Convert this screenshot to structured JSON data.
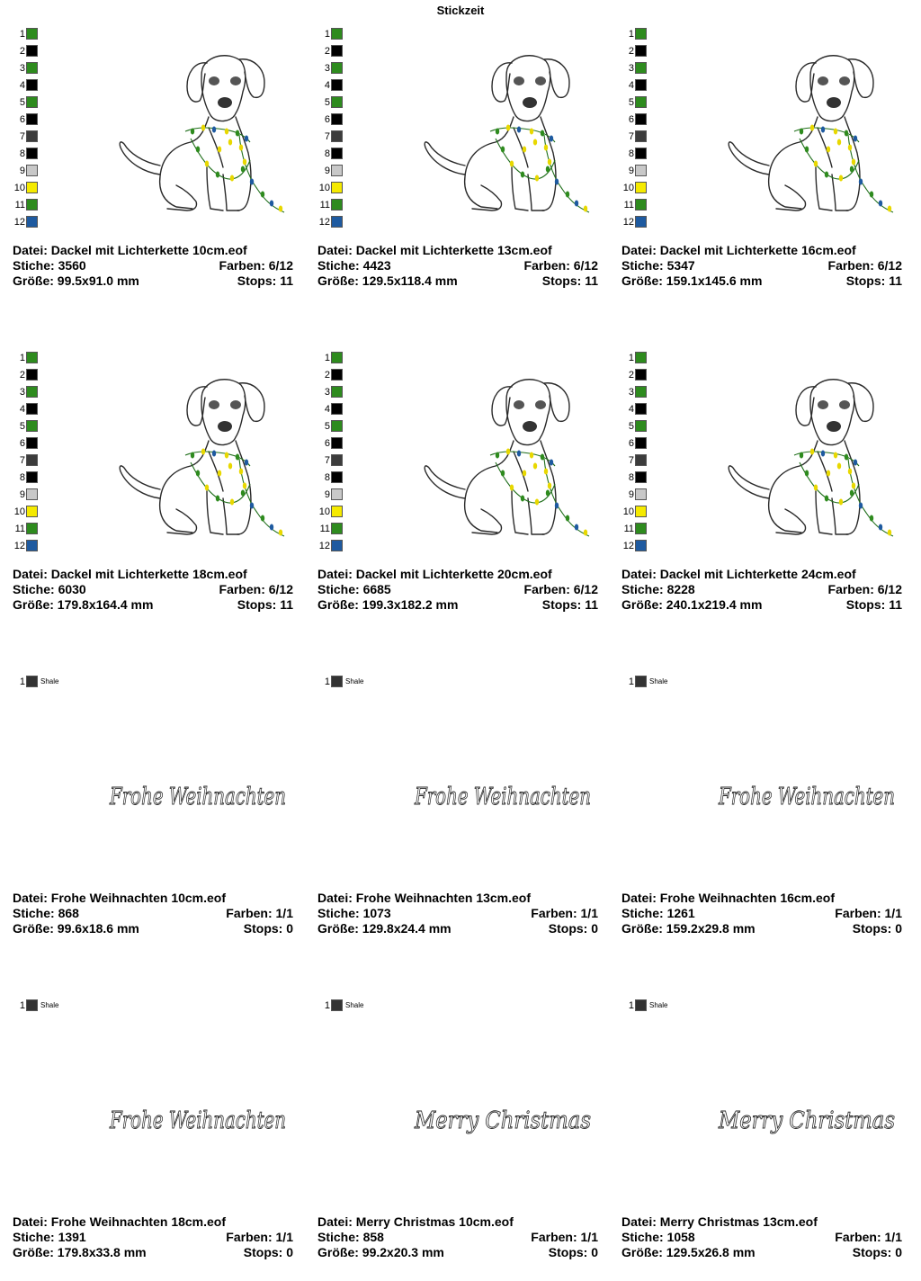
{
  "page_title": "Stickzeit",
  "dog_palette": [
    {
      "n": "1",
      "color": "#2e8b1e"
    },
    {
      "n": "2",
      "color": "#000000"
    },
    {
      "n": "3",
      "color": "#2e8b1e"
    },
    {
      "n": "4",
      "color": "#000000"
    },
    {
      "n": "5",
      "color": "#2e8b1e"
    },
    {
      "n": "6",
      "color": "#000000"
    },
    {
      "n": "7",
      "color": "#3c3c3c"
    },
    {
      "n": "8",
      "color": "#000000"
    },
    {
      "n": "9",
      "color": "#c8c8c8"
    },
    {
      "n": "10",
      "color": "#f5ea00"
    },
    {
      "n": "11",
      "color": "#2e8b1e"
    },
    {
      "n": "12",
      "color": "#1e5aa0"
    }
  ],
  "text_palette": [
    {
      "n": "1",
      "color": "#333333",
      "name": "Shale"
    }
  ],
  "designs": [
    {
      "file": "Datei: Dackel mit Lichterkette 10cm.eof",
      "stitches": "Stiche: 3560",
      "colors": "Farben: 6/12",
      "size": "Größe: 99.5x91.0 mm",
      "stops": "Stops: 11",
      "preview": "dog"
    },
    {
      "file": "Datei: Dackel mit Lichterkette 13cm.eof",
      "stitches": "Stiche: 4423",
      "colors": "Farben: 6/12",
      "size": "Größe: 129.5x118.4 mm",
      "stops": "Stops: 11",
      "preview": "dog"
    },
    {
      "file": "Datei: Dackel mit Lichterkette 16cm.eof",
      "stitches": "Stiche: 5347",
      "colors": "Farben: 6/12",
      "size": "Größe: 159.1x145.6 mm",
      "stops": "Stops: 11",
      "preview": "dog"
    },
    {
      "file": "Datei: Dackel mit Lichterkette 18cm.eof",
      "stitches": "Stiche: 6030",
      "colors": "Farben: 6/12",
      "size": "Größe: 179.8x164.4 mm",
      "stops": "Stops: 11",
      "preview": "dog"
    },
    {
      "file": "Datei: Dackel mit Lichterkette 20cm.eof",
      "stitches": "Stiche: 6685",
      "colors": "Farben: 6/12",
      "size": "Größe: 199.3x182.2 mm",
      "stops": "Stops: 11",
      "preview": "dog"
    },
    {
      "file": "Datei: Dackel mit Lichterkette 24cm.eof",
      "stitches": "Stiche: 8228",
      "colors": "Farben: 6/12",
      "size": "Größe: 240.1x219.4 mm",
      "stops": "Stops: 11",
      "preview": "dog"
    },
    {
      "file": "Datei: Frohe Weihnachten 10cm.eof",
      "stitches": "Stiche: 868",
      "colors": "Farben: 1/1",
      "size": "Größe: 99.6x18.6 mm",
      "stops": "Stops: 0",
      "preview": "text",
      "preview_text": "Frohe Weihnachten"
    },
    {
      "file": "Datei: Frohe Weihnachten 13cm.eof",
      "stitches": "Stiche: 1073",
      "colors": "Farben: 1/1",
      "size": "Größe: 129.8x24.4 mm",
      "stops": "Stops: 0",
      "preview": "text",
      "preview_text": "Frohe Weihnachten"
    },
    {
      "file": "Datei: Frohe Weihnachten 16cm.eof",
      "stitches": "Stiche: 1261",
      "colors": "Farben: 1/1",
      "size": "Größe: 159.2x29.8 mm",
      "stops": "Stops: 0",
      "preview": "text",
      "preview_text": "Frohe Weihnachten"
    },
    {
      "file": "Datei: Frohe Weihnachten 18cm.eof",
      "stitches": "Stiche: 1391",
      "colors": "Farben: 1/1",
      "size": "Größe: 179.8x33.8 mm",
      "stops": "Stops: 0",
      "preview": "text",
      "preview_text": "Frohe Weihnachten"
    },
    {
      "file": "Datei: Merry Christmas 10cm.eof",
      "stitches": "Stiche: 858",
      "colors": "Farben: 1/1",
      "size": "Größe: 99.2x20.3 mm",
      "stops": "Stops: 0",
      "preview": "text",
      "preview_text": "Merry Christmas"
    },
    {
      "file": "Datei: Merry Christmas 13cm.eof",
      "stitches": "Stiche: 1058",
      "colors": "Farben: 1/1",
      "size": "Größe: 129.5x26.8 mm",
      "stops": "Stops: 0",
      "preview": "text",
      "preview_text": "Merry Christmas"
    }
  ]
}
